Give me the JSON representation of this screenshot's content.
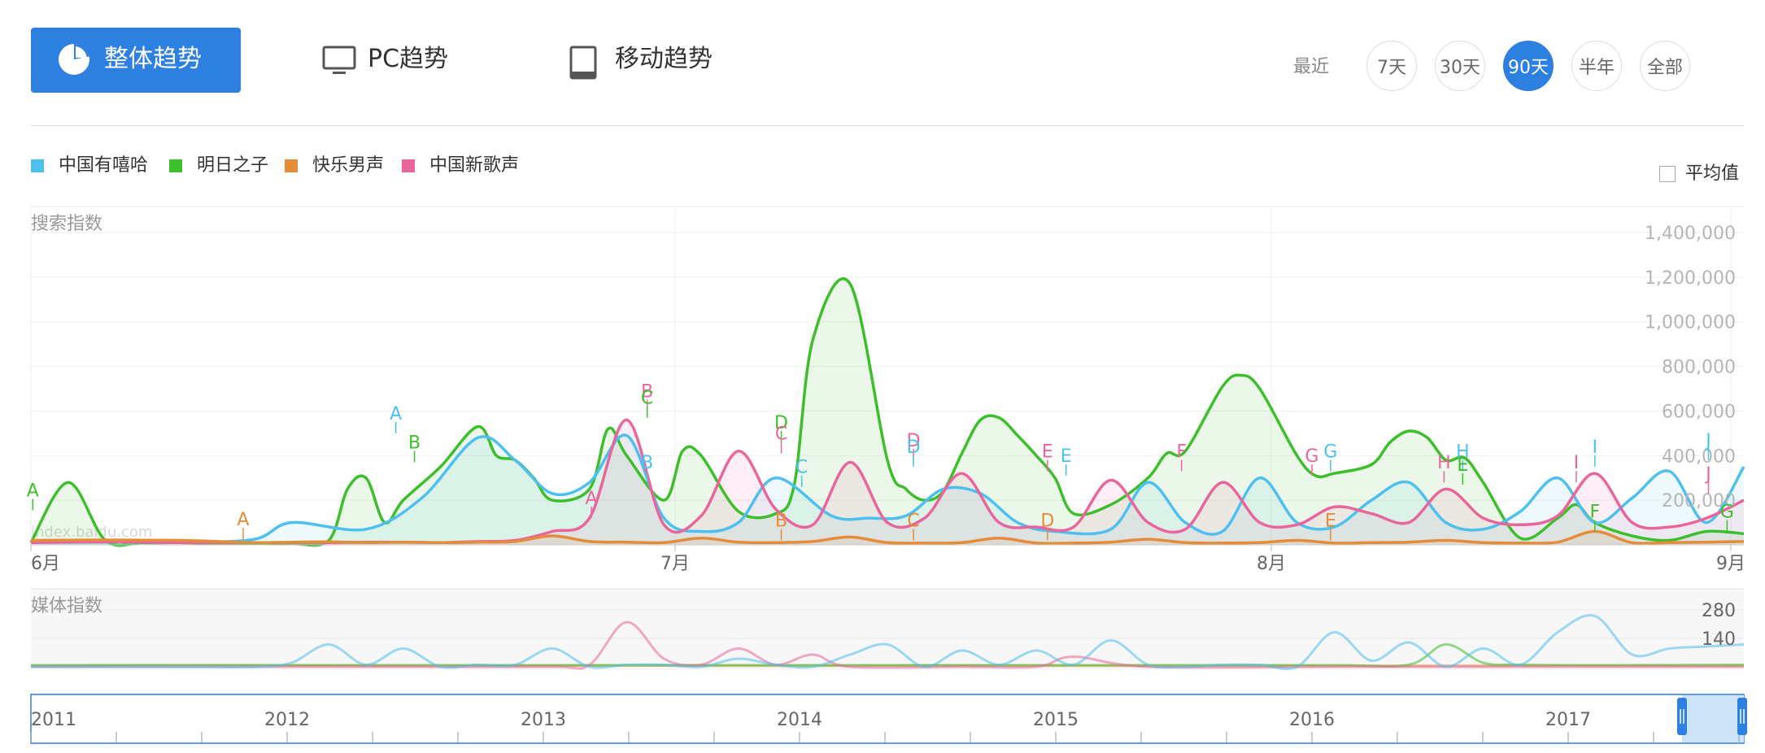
{
  "tabs": [
    {
      "label": "整体趋势",
      "icon": "pie-chart-icon",
      "active": true
    },
    {
      "label": "PC趋势",
      "icon": "monitor-icon",
      "active": false
    },
    {
      "label": "移动趋势",
      "icon": "tablet-icon",
      "active": false
    }
  ],
  "range": {
    "label": "最近",
    "options": [
      "7天",
      "30天",
      "90天",
      "半年",
      "全部"
    ],
    "selected": "90天"
  },
  "legend": [
    {
      "name": "中国有嘻哈",
      "color": "#4ec0ef"
    },
    {
      "name": "明日之子",
      "color": "#3dbf2c"
    },
    {
      "name": "快乐男声",
      "color": "#e58c3a"
    },
    {
      "name": "中国新歌声",
      "color": "#e9669d"
    }
  ],
  "average_label": "平均值",
  "watermark": "index.baidu.com",
  "colors": {
    "accent": "#2d7fe0"
  },
  "chart_data": [
    {
      "type": "area",
      "title": "搜索指数",
      "x_labels": [
        "6月",
        "7月",
        "8月",
        "9月"
      ],
      "y_ticks": [
        "1,400,000",
        "1,200,000",
        "1,000,000",
        "800,000",
        "600,000",
        "400,000",
        "200,000"
      ],
      "ylim": [
        0,
        1400000
      ],
      "x_range": [
        0,
        92
      ],
      "series": [
        {
          "name": "中国有嘻哈",
          "color": "#4ec0ef",
          "x": [
            0,
            4,
            8,
            12,
            14,
            18,
            21,
            24,
            26,
            28,
            30,
            32,
            34,
            36,
            38,
            40,
            43,
            45,
            47,
            49,
            51,
            53,
            55,
            58,
            60,
            62,
            64,
            66,
            68,
            70,
            72,
            74,
            76,
            78,
            80,
            82,
            84,
            86,
            88,
            90,
            92
          ],
          "values": [
            10000,
            12000,
            12000,
            25000,
            100000,
            70000,
            210000,
            480000,
            380000,
            230000,
            280000,
            490000,
            120000,
            60000,
            100000,
            300000,
            130000,
            120000,
            130000,
            250000,
            230000,
            100000,
            60000,
            70000,
            280000,
            100000,
            60000,
            300000,
            100000,
            80000,
            200000,
            280000,
            100000,
            70000,
            150000,
            300000,
            100000,
            210000,
            330000,
            100000,
            350000
          ]
        },
        {
          "name": "明日之子",
          "color": "#3dbf2c",
          "x": [
            0,
            2,
            4,
            6,
            8,
            10,
            12,
            14,
            16,
            17,
            18,
            19,
            20,
            22,
            24,
            25,
            26,
            27,
            28,
            30,
            31,
            32,
            34,
            35,
            36,
            38,
            40,
            41,
            42,
            44,
            46,
            47,
            48,
            49,
            50,
            51,
            52,
            53,
            54,
            55,
            56,
            58,
            60,
            61,
            62,
            64,
            65,
            66,
            68,
            69,
            70,
            72,
            73,
            74,
            75,
            76,
            77,
            78,
            80,
            82,
            83,
            84,
            86,
            88,
            90,
            92
          ],
          "values": [
            10000,
            280000,
            20000,
            10000,
            10000,
            5000,
            5000,
            5000,
            20000,
            250000,
            300000,
            100000,
            200000,
            350000,
            530000,
            400000,
            380000,
            300000,
            200000,
            250000,
            520000,
            400000,
            200000,
            420000,
            400000,
            150000,
            140000,
            270000,
            920000,
            1170000,
            380000,
            250000,
            200000,
            240000,
            410000,
            560000,
            570000,
            490000,
            400000,
            300000,
            140000,
            180000,
            300000,
            410000,
            420000,
            710000,
            760000,
            700000,
            400000,
            310000,
            320000,
            360000,
            460000,
            510000,
            480000,
            380000,
            390000,
            280000,
            30000,
            120000,
            180000,
            100000,
            40000,
            20000,
            60000,
            50000
          ]
        },
        {
          "name": "快乐男声",
          "color": "#e58c3a",
          "x": [
            0,
            4,
            8,
            10,
            12,
            14,
            16,
            18,
            20,
            22,
            24,
            26,
            28,
            30,
            32,
            34,
            36,
            38,
            40,
            42,
            44,
            46,
            48,
            50,
            52,
            54,
            56,
            58,
            60,
            62,
            64,
            66,
            68,
            70,
            72,
            74,
            76,
            78,
            80,
            82,
            84,
            86,
            88,
            90,
            92
          ],
          "values": [
            20000,
            22000,
            20000,
            15000,
            10000,
            12000,
            14000,
            10000,
            12000,
            10000,
            12000,
            15000,
            40000,
            15000,
            12000,
            10000,
            30000,
            12000,
            10000,
            15000,
            35000,
            10000,
            8000,
            10000,
            30000,
            8000,
            8000,
            12000,
            25000,
            10000,
            8000,
            10000,
            20000,
            8000,
            10000,
            12000,
            20000,
            10000,
            8000,
            12000,
            60000,
            10000,
            10000,
            12000,
            15000
          ]
        },
        {
          "name": "中国新歌声",
          "color": "#e9669d",
          "x": [
            0,
            4,
            8,
            12,
            16,
            18,
            20,
            22,
            24,
            26,
            28,
            30,
            32,
            34,
            36,
            38,
            40,
            42,
            44,
            46,
            48,
            50,
            52,
            54,
            56,
            58,
            60,
            62,
            64,
            66,
            68,
            70,
            72,
            74,
            76,
            78,
            80,
            82,
            84,
            86,
            88,
            90,
            92
          ],
          "values": [
            10000,
            14000,
            10000,
            10000,
            10000,
            12000,
            12000,
            10000,
            15000,
            20000,
            60000,
            120000,
            560000,
            90000,
            130000,
            420000,
            160000,
            90000,
            370000,
            100000,
            120000,
            320000,
            100000,
            80000,
            80000,
            290000,
            100000,
            70000,
            280000,
            100000,
            90000,
            170000,
            140000,
            100000,
            250000,
            120000,
            90000,
            130000,
            320000,
            100000,
            80000,
            120000,
            200000
          ]
        }
      ],
      "markers": [
        {
          "letter": "A",
          "color": "#3dbf2c",
          "x": 0.1,
          "y": 155000
        },
        {
          "letter": "A",
          "color": "#e58c3a",
          "x": 11.4,
          "y": 25000
        },
        {
          "letter": "A",
          "color": "#4ec0ef",
          "x": 19.6,
          "y": 500000
        },
        {
          "letter": "B",
          "color": "#3dbf2c",
          "x": 20.6,
          "y": 370000
        },
        {
          "letter": "A",
          "color": "#e9669d",
          "x": 30.1,
          "y": 120000
        },
        {
          "letter": "B",
          "color": "#e9669d",
          "x": 33.1,
          "y": 600000
        },
        {
          "letter": "C",
          "color": "#3dbf2c",
          "x": 33.1,
          "y": 570000
        },
        {
          "letter": "B",
          "color": "#4ec0ef",
          "x": 33.1,
          "y": 280000
        },
        {
          "letter": "D",
          "color": "#3dbf2c",
          "x": 40.3,
          "y": 460000
        },
        {
          "letter": "C",
          "color": "#e9669d",
          "x": 40.3,
          "y": 410000
        },
        {
          "letter": "C",
          "color": "#4ec0ef",
          "x": 41.4,
          "y": 260000
        },
        {
          "letter": "B",
          "color": "#e58c3a",
          "x": 40.3,
          "y": 20000
        },
        {
          "letter": "D",
          "color": "#e9669d",
          "x": 47.4,
          "y": 380000
        },
        {
          "letter": "D",
          "color": "#4ec0ef",
          "x": 47.4,
          "y": 350000
        },
        {
          "letter": "C",
          "color": "#e58c3a",
          "x": 47.4,
          "y": 20000
        },
        {
          "letter": "E",
          "color": "#e9669d",
          "x": 54.6,
          "y": 330000
        },
        {
          "letter": "E",
          "color": "#4ec0ef",
          "x": 55.6,
          "y": 310000
        },
        {
          "letter": "D",
          "color": "#e58c3a",
          "x": 54.6,
          "y": 20000
        },
        {
          "letter": "F",
          "color": "#e9669d",
          "x": 61.8,
          "y": 330000
        },
        {
          "letter": "G",
          "color": "#e9669d",
          "x": 68.8,
          "y": 310000
        },
        {
          "letter": "G",
          "color": "#4ec0ef",
          "x": 69.8,
          "y": 330000
        },
        {
          "letter": "E",
          "color": "#e58c3a",
          "x": 69.8,
          "y": 20000
        },
        {
          "letter": "H",
          "color": "#e9669d",
          "x": 75.9,
          "y": 280000
        },
        {
          "letter": "H",
          "color": "#4ec0ef",
          "x": 76.9,
          "y": 330000
        },
        {
          "letter": "E",
          "color": "#3dbf2c",
          "x": 76.9,
          "y": 270000
        },
        {
          "letter": "I",
          "color": "#e9669d",
          "x": 83.0,
          "y": 280000
        },
        {
          "letter": "I",
          "color": "#4ec0ef",
          "x": 84.0,
          "y": 350000
        },
        {
          "letter": "F",
          "color": "#3dbf2c",
          "x": 84.0,
          "y": 60000
        },
        {
          "letter": "J",
          "color": "#4ec0ef",
          "x": 90.1,
          "y": 380000
        },
        {
          "letter": "J",
          "color": "#e9669d",
          "x": 90.1,
          "y": 230000
        },
        {
          "letter": "G",
          "color": "#3dbf2c",
          "x": 91.1,
          "y": 60000
        }
      ]
    },
    {
      "type": "line",
      "title": "媒体指数",
      "y_ticks": [
        "280",
        "140"
      ],
      "ylim": [
        0,
        320
      ],
      "x_range": [
        0,
        92
      ],
      "series": [
        {
          "name": "中国有嘻哈",
          "color": "#4ec0ef",
          "x": [
            0,
            8,
            12,
            14,
            16,
            18,
            20,
            22,
            24,
            26,
            28,
            30,
            32,
            34,
            36,
            38,
            40,
            42,
            44,
            46,
            48,
            50,
            52,
            54,
            56,
            58,
            60,
            62,
            64,
            66,
            68,
            70,
            72,
            74,
            76,
            78,
            80,
            82,
            84,
            86,
            88,
            90,
            92
          ],
          "values": [
            0,
            0,
            0,
            20,
            110,
            10,
            90,
            0,
            10,
            10,
            90,
            0,
            10,
            10,
            0,
            40,
            10,
            0,
            60,
            110,
            0,
            80,
            10,
            80,
            10,
            130,
            10,
            0,
            10,
            10,
            0,
            170,
            30,
            120,
            0,
            90,
            10,
            170,
            250,
            60,
            90,
            100,
            110
          ]
        },
        {
          "name": "明日之子",
          "color": "#3dbf2c",
          "x": [
            0,
            10,
            20,
            30,
            40,
            50,
            60,
            70,
            74,
            76,
            78,
            80,
            85,
            92
          ],
          "values": [
            8,
            8,
            8,
            8,
            8,
            8,
            8,
            8,
            10,
            110,
            20,
            10,
            8,
            10
          ]
        },
        {
          "name": "快乐男声",
          "color": "#e58c3a",
          "x": [
            0,
            10,
            20,
            30,
            40,
            50,
            60,
            70,
            80,
            92
          ],
          "values": [
            5,
            8,
            5,
            6,
            5,
            6,
            5,
            5,
            6,
            5
          ]
        },
        {
          "name": "中国新歌声",
          "color": "#e9669d",
          "x": [
            0,
            10,
            16,
            20,
            28,
            30,
            32,
            34,
            36,
            38,
            40,
            42,
            44,
            50,
            54,
            56,
            60,
            70,
            80,
            92
          ],
          "values": [
            0,
            0,
            0,
            0,
            0,
            10,
            220,
            40,
            10,
            90,
            10,
            60,
            0,
            0,
            0,
            50,
            0,
            0,
            0,
            0
          ]
        }
      ]
    },
    {
      "type": "line",
      "title": "",
      "x_labels": [
        "2011",
        "2012",
        "2013",
        "2014",
        "2015",
        "2016",
        "2017"
      ]
    }
  ]
}
